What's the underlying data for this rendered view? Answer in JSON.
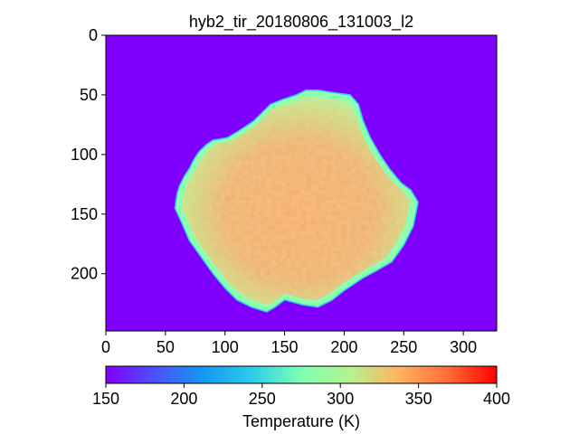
{
  "chart_data": {
    "type": "heatmap",
    "title": "hyb2_tir_20180806_131003_l2",
    "xlabel": "",
    "ylabel": "",
    "x_ticks": [
      0,
      50,
      100,
      150,
      200,
      250,
      300
    ],
    "y_ticks": [
      0,
      50,
      100,
      150,
      200
    ],
    "xlim": [
      0,
      328
    ],
    "ylim": [
      248,
      0
    ],
    "background_value": 150,
    "colorbar": {
      "label": "Temperature (K)",
      "range": [
        150,
        400
      ],
      "ticks": [
        150,
        200,
        250,
        300,
        350,
        400
      ],
      "colormap": "rainbow",
      "orientation": "horizontal"
    },
    "object_outline": [
      [
        60,
        132
      ],
      [
        62,
        126
      ],
      [
        66,
        118
      ],
      [
        70,
        112
      ],
      [
        74,
        104
      ],
      [
        78,
        98
      ],
      [
        84,
        92
      ],
      [
        90,
        88
      ],
      [
        102,
        86
      ],
      [
        112,
        80
      ],
      [
        124,
        72
      ],
      [
        132,
        64
      ],
      [
        138,
        58
      ],
      [
        148,
        54
      ],
      [
        160,
        50
      ],
      [
        168,
        46
      ],
      [
        178,
        46
      ],
      [
        190,
        48
      ],
      [
        205,
        50
      ],
      [
        212,
        58
      ],
      [
        216,
        72
      ],
      [
        222,
        86
      ],
      [
        230,
        100
      ],
      [
        238,
        112
      ],
      [
        248,
        124
      ],
      [
        256,
        130
      ],
      [
        262,
        140
      ],
      [
        258,
        160
      ],
      [
        250,
        176
      ],
      [
        240,
        190
      ],
      [
        226,
        198
      ],
      [
        215,
        204
      ],
      [
        200,
        214
      ],
      [
        190,
        222
      ],
      [
        178,
        228
      ],
      [
        165,
        226
      ],
      [
        150,
        222
      ],
      [
        142,
        228
      ],
      [
        135,
        232
      ],
      [
        122,
        228
      ],
      [
        110,
        222
      ],
      [
        100,
        212
      ],
      [
        90,
        200
      ],
      [
        80,
        186
      ],
      [
        70,
        172
      ],
      [
        64,
        158
      ],
      [
        58,
        145
      ]
    ],
    "warm_band_value": 345,
    "cool_rim_value": 300
  }
}
